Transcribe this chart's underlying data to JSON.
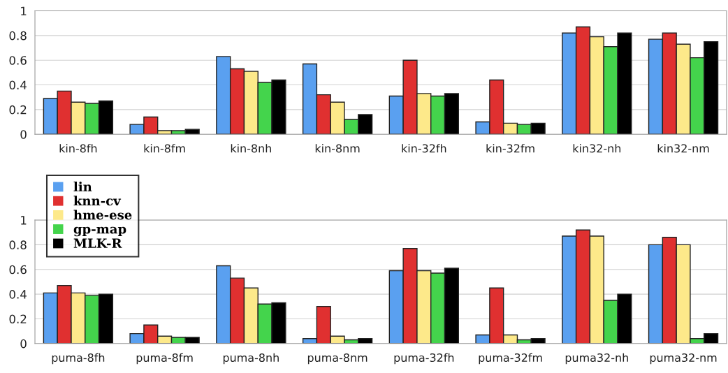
{
  "chart_data": [
    {
      "type": "bar",
      "categories": [
        "kin-8fh",
        "kin-8fm",
        "kin-8nh",
        "kin-8nm",
        "kin-32fh",
        "kin-32fm",
        "kin32-nh",
        "kin32-nm"
      ],
      "ylim": [
        0,
        1
      ],
      "yticks": [
        0,
        0.2,
        0.4,
        0.6,
        0.8,
        1
      ],
      "grid": "y",
      "legend": "bottom left",
      "series": [
        {
          "name": "lin",
          "color": "#5aa0f0",
          "values": [
            0.29,
            0.08,
            0.63,
            0.57,
            0.31,
            0.1,
            0.82,
            0.77
          ]
        },
        {
          "name": "knn-cv",
          "color": "#e03030",
          "values": [
            0.35,
            0.14,
            0.53,
            0.32,
            0.6,
            0.44,
            0.87,
            0.82
          ]
        },
        {
          "name": "hme-ese",
          "color": "#fde98a",
          "values": [
            0.26,
            0.03,
            0.51,
            0.26,
            0.33,
            0.09,
            0.79,
            0.73
          ]
        },
        {
          "name": "gp-map",
          "color": "#44d44c",
          "values": [
            0.25,
            0.03,
            0.42,
            0.12,
            0.31,
            0.08,
            0.71,
            0.62
          ]
        },
        {
          "name": "MLK-R",
          "color": "#000000",
          "values": [
            0.27,
            0.04,
            0.44,
            0.16,
            0.33,
            0.09,
            0.82,
            0.75
          ]
        }
      ]
    },
    {
      "type": "bar",
      "categories": [
        "puma-8fh",
        "puma-8fm",
        "puma-8nh",
        "puma-8nm",
        "puma-32fh",
        "puma-32fm",
        "puma32-nh",
        "puma32-nm"
      ],
      "ylim": [
        0,
        1
      ],
      "yticks": [
        0,
        0.2,
        0.4,
        0.6,
        0.8,
        1
      ],
      "grid": "y",
      "series": [
        {
          "color": "#5aa0f0",
          "values": [
            0.41,
            0.08,
            0.63,
            0.04,
            0.59,
            0.07,
            0.87,
            0.8
          ]
        },
        {
          "color": "#e03030",
          "values": [
            0.47,
            0.15,
            0.53,
            0.3,
            0.77,
            0.45,
            0.92,
            0.86
          ]
        },
        {
          "color": "#fde98a",
          "values": [
            0.41,
            0.06,
            0.45,
            0.06,
            0.59,
            0.07,
            0.87,
            0.8
          ]
        },
        {
          "color": "#44d44c",
          "values": [
            0.39,
            0.05,
            0.32,
            0.03,
            0.57,
            0.03,
            0.35,
            0.04
          ]
        },
        {
          "color": "#000000",
          "values": [
            0.4,
            0.05,
            0.33,
            0.04,
            0.61,
            0.04,
            0.4,
            0.08
          ]
        }
      ]
    }
  ]
}
